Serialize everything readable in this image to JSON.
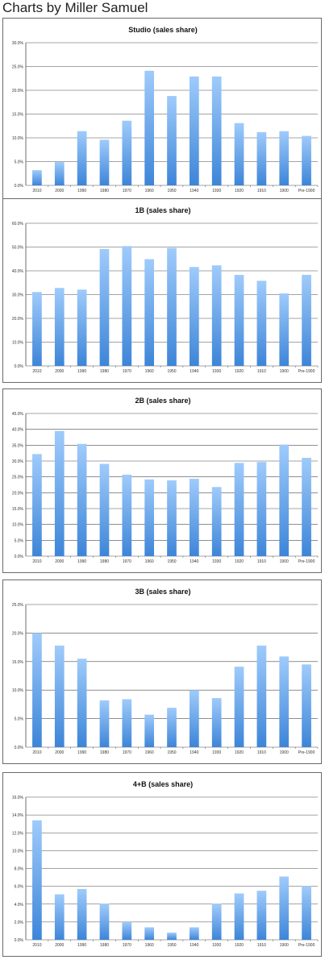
{
  "header": {
    "title": "Charts by Miller Samuel"
  },
  "chart_data": [
    {
      "type": "bar",
      "title": "Studio (sales share)",
      "categories": [
        "2010",
        "2000",
        "1990",
        "1980",
        "1970",
        "1960",
        "1950",
        "1940",
        "1930",
        "1920",
        "1910",
        "1900",
        "Pre-1900"
      ],
      "values": [
        3.2,
        4.9,
        11.4,
        9.6,
        13.6,
        24.1,
        18.8,
        22.9,
        22.9,
        13.1,
        11.2,
        11.4,
        10.4
      ],
      "y_ticks": [
        "0.0%",
        "5.0%",
        "10.0%",
        "15.0%",
        "20.0%",
        "25.0%",
        "30.0%"
      ],
      "ylim": [
        0,
        30
      ],
      "grid": true
    },
    {
      "type": "bar",
      "title": "1B (sales share)",
      "categories": [
        "2010",
        "2000",
        "1990",
        "1980",
        "1970",
        "1960",
        "1950",
        "1940",
        "1930",
        "1920",
        "1910",
        "1900",
        "Pre-1900"
      ],
      "values": [
        31.1,
        32.8,
        32.1,
        49.2,
        50.4,
        44.9,
        49.6,
        41.6,
        42.3,
        38.3,
        35.8,
        30.5,
        38.3
      ],
      "y_ticks": [
        "0.0%",
        "10.0%",
        "20.0%",
        "30.0%",
        "40.0%",
        "50.0%",
        "60.0%"
      ],
      "ylim": [
        0,
        60
      ],
      "grid": true
    },
    {
      "type": "bar",
      "title": "2B (sales share)",
      "categories": [
        "2010",
        "2000",
        "1990",
        "1980",
        "1970",
        "1960",
        "1950",
        "1940",
        "1930",
        "1920",
        "1910",
        "1900",
        "Pre-1900"
      ],
      "values": [
        32.2,
        39.5,
        35.4,
        29.1,
        25.7,
        24.2,
        23.9,
        24.4,
        21.8,
        29.4,
        29.7,
        35.2,
        31.0
      ],
      "y_ticks": [
        "0.0%",
        "5.0%",
        "10.0%",
        "15.0%",
        "20.0%",
        "25.0%",
        "30.0%",
        "35.0%",
        "40.0%",
        "45.0%"
      ],
      "ylim": [
        0,
        45
      ],
      "grid": true
    },
    {
      "type": "bar",
      "title": "3B (sales share)",
      "categories": [
        "2010",
        "2000",
        "1990",
        "1980",
        "1970",
        "1960",
        "1950",
        "1940",
        "1930",
        "1920",
        "1910",
        "1900",
        "Pre-1900"
      ],
      "values": [
        20.0,
        17.8,
        15.5,
        8.2,
        8.4,
        5.7,
        6.9,
        10.0,
        8.6,
        14.1,
        17.8,
        15.9,
        14.5
      ],
      "y_ticks": [
        "0.0%",
        "5.0%",
        "10.0%",
        "15.0%",
        "20.0%",
        "25.0%"
      ],
      "ylim": [
        0,
        25
      ],
      "grid": true
    },
    {
      "type": "bar",
      "title": "4+B (sales share)",
      "categories": [
        "2010",
        "2000",
        "1990",
        "1980",
        "1970",
        "1960",
        "1950",
        "1940",
        "1930",
        "1920",
        "1910",
        "1900",
        "Pre-1900"
      ],
      "values": [
        13.4,
        5.1,
        5.7,
        4.0,
        2.0,
        1.4,
        0.8,
        1.4,
        4.0,
        5.2,
        5.5,
        7.1,
        6.0
      ],
      "y_ticks": [
        "0.0%",
        "2.0%",
        "4.0%",
        "6.0%",
        "8.0%",
        "10.0%",
        "12.0%",
        "14.0%",
        "16.0%"
      ],
      "ylim": [
        0,
        16
      ],
      "grid": true
    }
  ],
  "colors": {
    "bar_top": "#9fcbfb",
    "bar_bottom": "#3d85d8",
    "grid": "#4a4a4a",
    "panel_border": "#6a6a6a"
  }
}
